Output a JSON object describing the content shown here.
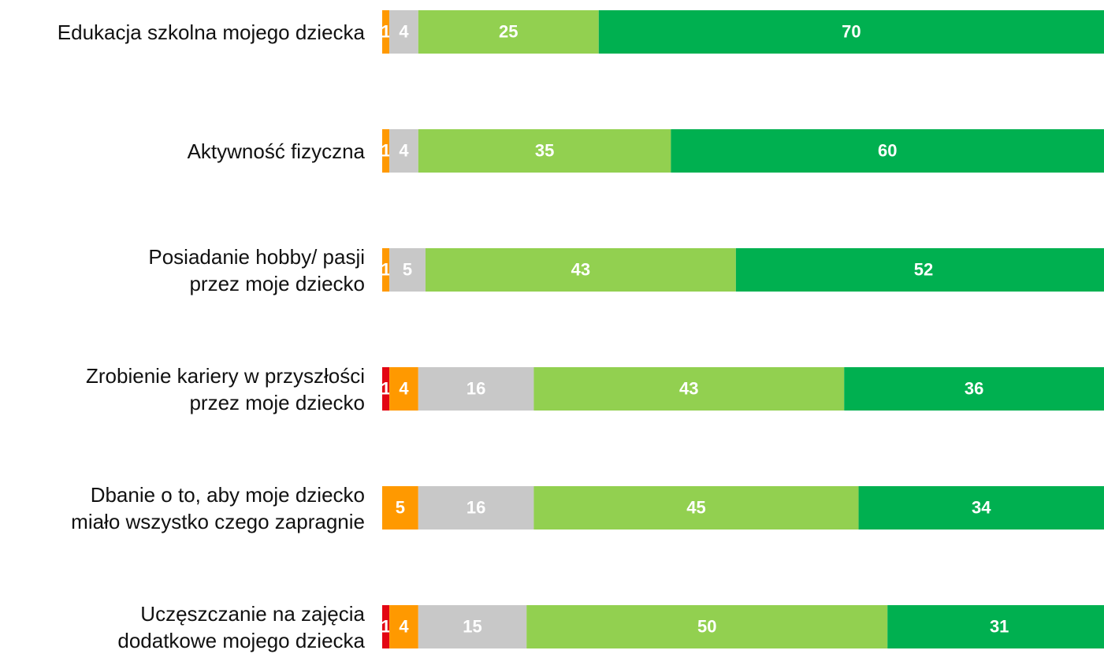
{
  "chart_data": {
    "type": "stacked-barh",
    "categories": [
      "Edukacja szkolna mojego dziecka",
      "Aktywność fizyczna",
      "Posiadanie hobby/ pasji\nprzez moje dziecko",
      "Zrobienie kariery w przyszłości\nprzez moje dziecko",
      "Dbanie o to, aby moje dziecko\nmiało wszystko czego zapragnie",
      "Uczęszczanie na zajęcia\ndodatkowe mojego dziecka"
    ],
    "xlim": [
      0,
      100
    ],
    "series": [
      {
        "color": "#e30613",
        "values": [
          null,
          null,
          null,
          1,
          null,
          1
        ]
      },
      {
        "color": "#ff9900",
        "values": [
          1,
          1,
          1,
          4,
          5,
          4
        ]
      },
      {
        "color": "#c8c8c8",
        "values": [
          4,
          4,
          5,
          16,
          16,
          15
        ]
      },
      {
        "color": "#92d050",
        "values": [
          25,
          35,
          43,
          43,
          45,
          50
        ]
      },
      {
        "color": "#00b050",
        "values": [
          70,
          60,
          52,
          36,
          34,
          31
        ]
      }
    ]
  }
}
